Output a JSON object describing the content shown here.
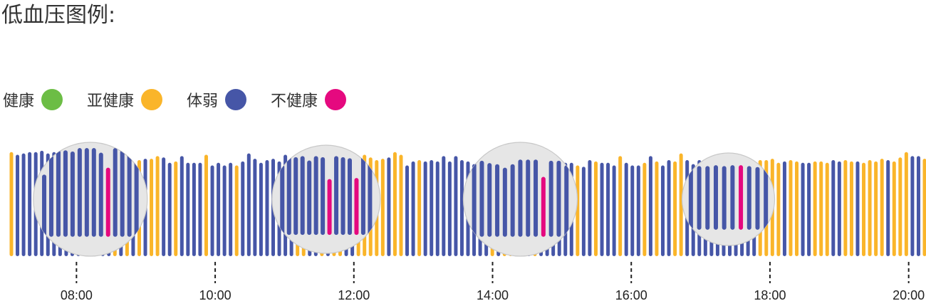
{
  "title": "低血压图例:",
  "legend": [
    {
      "label": "健康",
      "color": "#6cbd45",
      "key": "healthy"
    },
    {
      "label": "亚健康",
      "color": "#fab52a",
      "key": "subhealthy"
    },
    {
      "label": "体弱",
      "color": "#4656a7",
      "key": "weak"
    },
    {
      "label": "不健康",
      "color": "#e5097f",
      "key": "unhealthy"
    }
  ],
  "colors": {
    "healthy": "#6cbd45",
    "subhealthy": "#fab52a",
    "weak": "#4656a7",
    "unhealthy": "#e5097f",
    "lens": "#e6e6e6"
  },
  "chart_data": {
    "type": "bar",
    "title": "低血压图例:",
    "x_unit": "hour",
    "xlim": [
      7.0,
      20.25
    ],
    "ticks": [
      "08:00",
      "10:00",
      "12:00",
      "14:00",
      "16:00",
      "18:00",
      "20:00"
    ],
    "tick_hours": [
      8,
      10,
      12,
      14,
      16,
      18,
      20
    ],
    "values": [
      3.9,
      3.8,
      3.85,
      3.9,
      3.9,
      3.95,
      3.85,
      3.9,
      3.8,
      3.9,
      3.85,
      3.9,
      3.85,
      3.8,
      3.75,
      3.6,
      3.55,
      3.65,
      3.6,
      3.55,
      3.25,
      3.6,
      3.65,
      3.65,
      3.75,
      3.7,
      3.5,
      3.55,
      3.75,
      3.5,
      3.5,
      3.5,
      3.8,
      3.4,
      3.5,
      3.4,
      3.5,
      3.4,
      3.55,
      3.85,
      3.65,
      3.5,
      3.6,
      3.65,
      3.55,
      3.8,
      3.55,
      3.7,
      3.7,
      3.6,
      3.4,
      3.45,
      3.6,
      3.7,
      3.9,
      3.5,
      3.5,
      3.4,
      3.8,
      3.7,
      3.6,
      3.65,
      3.7,
      3.9,
      3.8,
      3.4,
      3.55,
      3.6,
      3.55,
      3.6,
      3.55,
      3.75,
      3.55,
      3.75,
      3.6,
      3.55,
      3.45,
      3.6,
      3.8,
      3.65,
      3.55,
      3.6,
      3.45,
      3.45,
      3.6,
      3.5,
      3.65,
      3.55,
      3.5,
      3.5,
      3.65,
      3.5,
      3.5,
      3.4,
      3.35,
      3.6,
      3.55,
      3.5,
      3.5,
      3.4,
      3.75,
      3.5,
      3.4,
      3.4,
      3.5,
      3.75,
      3.55,
      3.4,
      3.6,
      3.55,
      3.85,
      3.6,
      3.45,
      3.6,
      3.4,
      3.6,
      3.7,
      3.6,
      3.4,
      3.75,
      3.55,
      3.5,
      3.4,
      3.6,
      3.6,
      3.65,
      3.5,
      3.55,
      3.6,
      3.55,
      3.5,
      3.5,
      3.55,
      3.55,
      3.5,
      3.6,
      3.55,
      3.6,
      3.55,
      3.55,
      3.5,
      3.6,
      3.55,
      3.65,
      3.6,
      3.55,
      3.7,
      3.9,
      3.75,
      3.75,
      3.65
    ],
    "status": [
      "subhealthy",
      "weak",
      "weak",
      "weak",
      "weak",
      "weak",
      "weak",
      "weak",
      "weak",
      "weak",
      "weak",
      "weak",
      "weak",
      "weak",
      "weak",
      "weak",
      "weak",
      "subhealthy",
      "weak",
      "subhealthy",
      "weak",
      "subhealthy",
      "weak",
      "subhealthy",
      "subhealthy",
      "weak",
      "weak",
      "subhealthy",
      "weak",
      "weak",
      "weak",
      "weak",
      "subhealthy",
      "weak",
      "weak",
      "weak",
      "weak",
      "subhealthy",
      "weak",
      "weak",
      "weak",
      "weak",
      "weak",
      "weak",
      "weak",
      "weak",
      "weak",
      "subhealthy",
      "subhealthy",
      "weak",
      "weak",
      "subhealthy",
      "weak",
      "subhealthy",
      "subhealthy",
      "weak",
      "weak",
      "subhealthy",
      "subhealthy",
      "subhealthy",
      "subhealthy",
      "subhealthy",
      "weak",
      "subhealthy",
      "subhealthy",
      "weak",
      "weak",
      "subhealthy",
      "weak",
      "weak",
      "weak",
      "weak",
      "weak",
      "weak",
      "weak",
      "weak",
      "weak",
      "weak",
      "weak",
      "subhealthy",
      "weak",
      "subhealthy",
      "subhealthy",
      "weak",
      "subhealthy",
      "weak",
      "subhealthy",
      "weak",
      "weak",
      "weak",
      "weak",
      "weak",
      "weak",
      "subhealthy",
      "weak",
      "weak",
      "subhealthy",
      "weak",
      "weak",
      "weak",
      "subhealthy",
      "weak",
      "weak",
      "weak",
      "subhealthy",
      "weak",
      "subhealthy",
      "weak",
      "weak",
      "subhealthy",
      "subhealthy",
      "weak",
      "weak",
      "weak",
      "weak",
      "weak",
      "weak",
      "weak",
      "weak",
      "weak",
      "weak",
      "weak",
      "weak",
      "subhealthy",
      "subhealthy",
      "subhealthy",
      "subhealthy",
      "weak",
      "subhealthy",
      "subhealthy",
      "weak",
      "weak",
      "subhealthy",
      "subhealthy",
      "subhealthy",
      "weak",
      "weak",
      "subhealthy",
      "subhealthy",
      "weak",
      "subhealthy",
      "subhealthy",
      "subhealthy",
      "subhealthy",
      "weak",
      "subhealthy",
      "subhealthy",
      "subhealthy",
      "weak",
      "weak",
      "subhealthy"
    ],
    "lenses": [
      {
        "center_hour": 8.2,
        "radius": 80,
        "values": [
          2.7,
          3.55,
          3.75,
          3.75,
          3.7,
          3.85,
          3.85,
          3.85,
          3.65,
          3.0,
          3.85,
          3.75,
          3.85,
          3.7
        ],
        "status": [
          "weak",
          "weak",
          "weak",
          "weak",
          "weak",
          "weak",
          "weak",
          "weak",
          "weak",
          "unhealthy",
          "weak",
          "weak",
          "weak",
          "weak"
        ]
      },
      {
        "center_hour": 11.6,
        "radius": 76,
        "values": [
          3.2,
          3.9,
          3.55,
          3.6,
          3.4,
          3.6,
          3.55,
          2.55,
          3.6,
          3.55,
          3.5,
          2.6,
          3.9,
          3.6
        ],
        "status": [
          "weak",
          "weak",
          "weak",
          "weak",
          "weak",
          "weak",
          "weak",
          "unhealthy",
          "weak",
          "weak",
          "weak",
          "unhealthy",
          "weak",
          "weak"
        ]
      },
      {
        "center_hour": 14.4,
        "radius": 80,
        "values": [
          3.2,
          3.3,
          3.2,
          3.15,
          3.0,
          3.15,
          3.35,
          3.35,
          3.35,
          2.6,
          3.3,
          3.3,
          3.1
        ],
        "status": [
          "weak",
          "weak",
          "weak",
          "weak",
          "weak",
          "weak",
          "weak",
          "weak",
          "weak",
          "unhealthy",
          "weak",
          "weak",
          "weak"
        ]
      },
      {
        "center_hour": 17.4,
        "radius": 65,
        "values": [
          3.3,
          3.4,
          3.4,
          3.45,
          3.4,
          3.45,
          3.45,
          3.4,
          3.35,
          3.3
        ],
        "status": [
          "weak",
          "weak",
          "weak",
          "weak",
          "weak",
          "weak",
          "unhealthy",
          "weak",
          "weak",
          "weak"
        ]
      }
    ]
  }
}
